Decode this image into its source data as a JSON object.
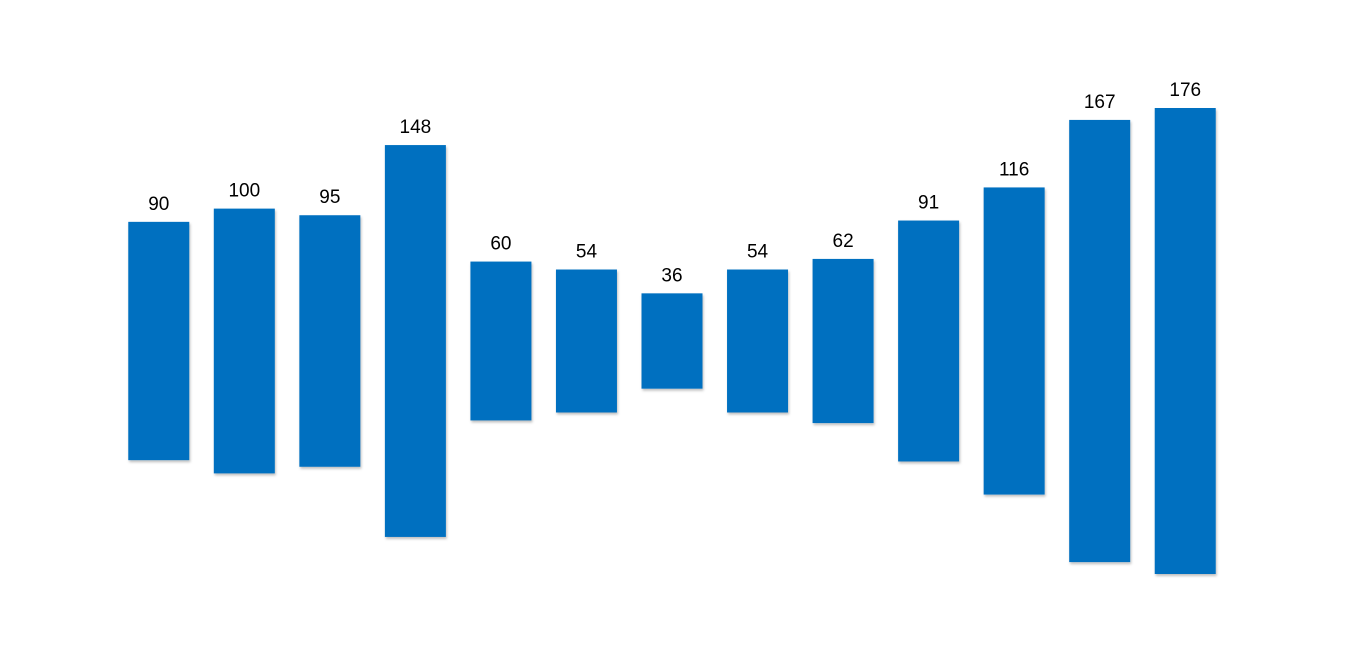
{
  "chart_data": {
    "type": "funnel",
    "values": [
      90,
      100,
      95,
      148,
      60,
      54,
      36,
      54,
      62,
      91,
      116,
      167,
      176
    ],
    "color": "#0070c0"
  }
}
